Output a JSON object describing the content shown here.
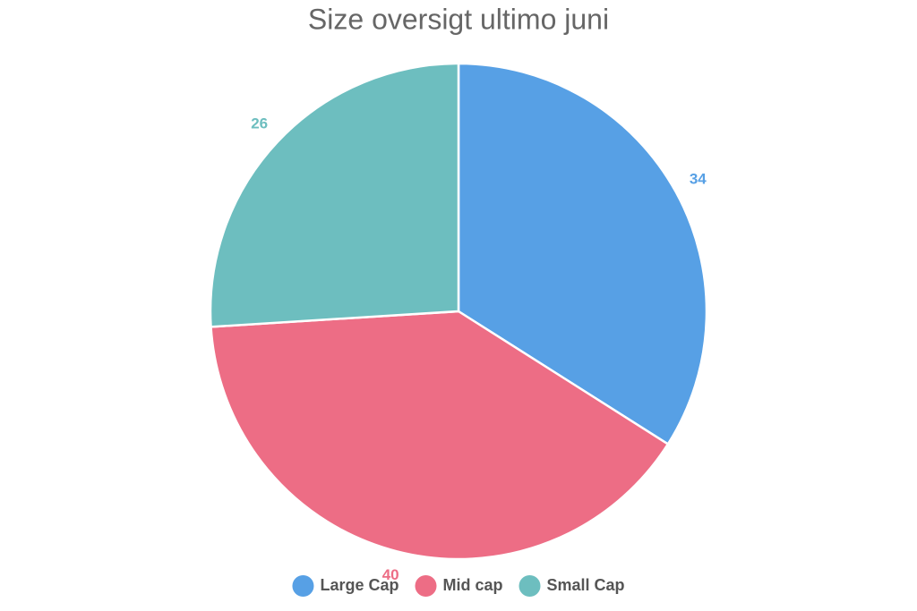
{
  "chart_data": {
    "type": "pie",
    "title": "Size oversigt ultimo juni",
    "categories": [
      "Large Cap",
      "Mid cap",
      "Small Cap"
    ],
    "values": [
      34,
      40,
      26
    ],
    "colors": [
      "#57a0e5",
      "#ed6d85",
      "#6dbebf"
    ],
    "legend": "bottom"
  }
}
